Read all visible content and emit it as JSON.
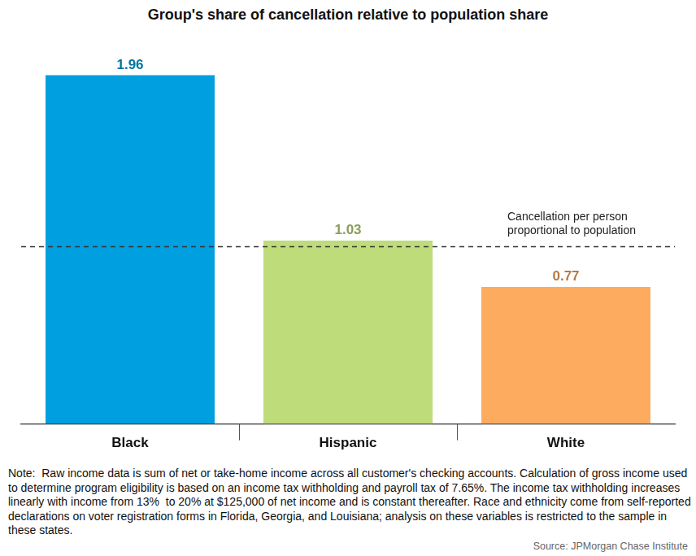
{
  "chart_data": {
    "type": "bar",
    "title": "Group's share of cancellation relative to population share",
    "categories": [
      "Black",
      "Hispanic",
      "White"
    ],
    "values": [
      1.96,
      1.03,
      0.77
    ],
    "colors": [
      "#009fdf",
      "#bedc7a",
      "#fdab5f"
    ],
    "ylim": [
      0,
      2.2
    ],
    "data_labels": true,
    "tick_labels": "x",
    "grid": false,
    "annotations": [
      {
        "text": "Cancellation per person\nproportional to population",
        "y": 1
      }
    ],
    "note": "Note:  Raw income data is sum of net or take-home income across all customer's checking accounts. Calculation of gross income used to determine program eligibility is based on an income tax withholding and payroll tax of 7.65%. The income tax withholding increases linearly with income from 13%  to 20% at $125,000 of net income and is constant thereafter. Race and ethnicity come from self-reported declarations on voter registration forms in Florida, Georgia, and Louisiana; analysis on these variables is restricted to the sample in these states.",
    "source": "Source: JPMorgan Chase Institute"
  }
}
